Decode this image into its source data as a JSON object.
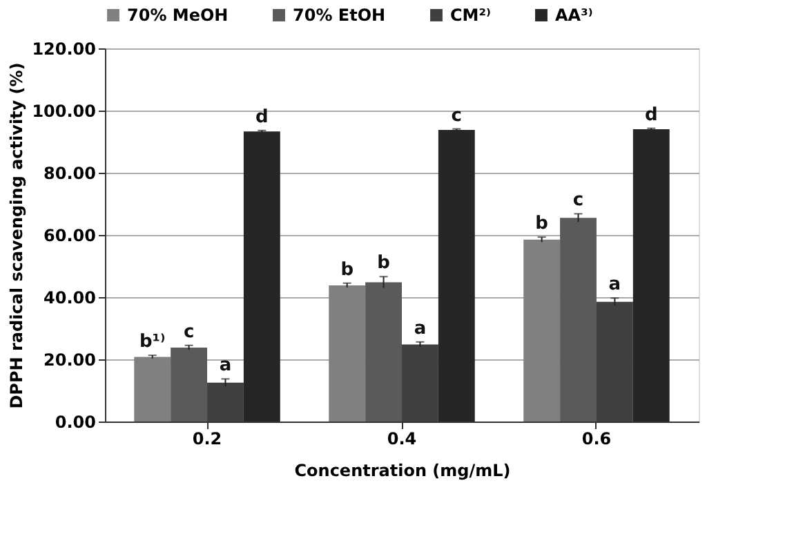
{
  "chart_data": {
    "type": "bar",
    "xlabel": "Concentration (mg/mL)",
    "ylabel": "DPPH radical scavenging activity (%)",
    "categories": [
      "0.2",
      "0.4",
      "0.6"
    ],
    "series": [
      {
        "name": "70% MeOH",
        "color": "#808080",
        "values": [
          20.8,
          43.8,
          58.5
        ],
        "errors": [
          0.5,
          0.7,
          0.8
        ],
        "value_labels": [
          "b¹⁾",
          "b",
          "b"
        ]
      },
      {
        "name": "70% EtOH",
        "color": "#5a5a5a",
        "values": [
          23.8,
          44.8,
          65.5
        ],
        "errors": [
          0.7,
          1.8,
          1.3
        ],
        "value_labels": [
          "c",
          "b",
          "c"
        ]
      },
      {
        "name": "CM²⁾",
        "color": "#404040",
        "values": [
          12.5,
          24.8,
          38.5
        ],
        "errors": [
          1.2,
          0.8,
          1.2
        ],
        "value_labels": [
          "a",
          "a",
          "a"
        ]
      },
      {
        "name": "AA³⁾",
        "color": "#262626",
        "values": [
          93.3,
          93.8,
          94.0
        ],
        "errors": [
          0.3,
          0.3,
          0.3
        ],
        "value_labels": [
          "d",
          "c",
          "d"
        ]
      }
    ],
    "ylim": [
      0,
      120
    ],
    "yticks": [
      {
        "value": 0,
        "label": "0.00"
      },
      {
        "value": 20,
        "label": "20.00"
      },
      {
        "value": 40,
        "label": "40.00"
      },
      {
        "value": 60,
        "label": "60.00"
      },
      {
        "value": 80,
        "label": "80.00"
      },
      {
        "value": 100,
        "label": "100.00"
      },
      {
        "value": 120,
        "label": "120.00"
      }
    ],
    "grid": "y",
    "legend": "top"
  }
}
